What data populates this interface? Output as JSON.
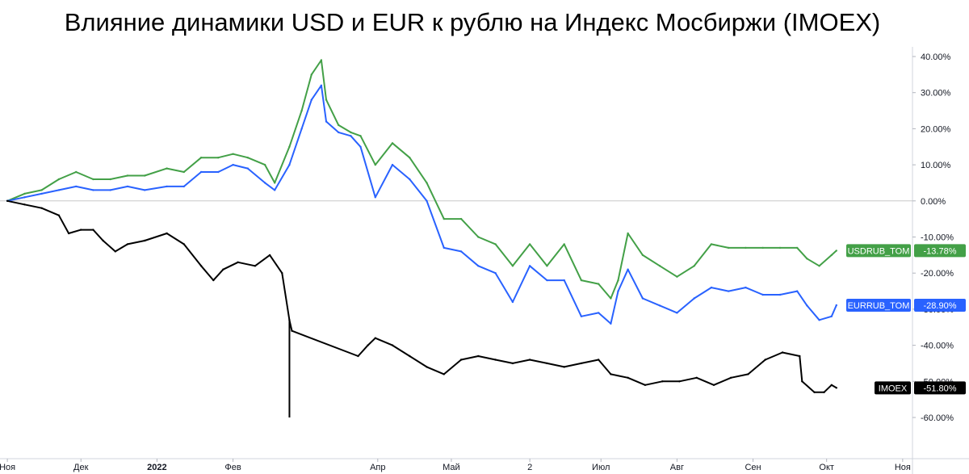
{
  "title": "Влияние динамики USD и EUR к рублю на Индекс Мосбиржи (IMOEX)",
  "chart_data": {
    "type": "line",
    "title": "Влияние динамики USD и EUR к рублю на Индекс Мосбиржи (IMOEX)",
    "y_unit": "%",
    "ylim": [
      -64,
      42
    ],
    "y_ticks": [
      "40.00%",
      "30.00%",
      "20.00%",
      "10.00%",
      "0.00%",
      "-10.00%",
      "-20.00%",
      "-30.00%",
      "-40.00%",
      "-50.00%",
      "-60.00%"
    ],
    "y_tick_values": [
      40,
      30,
      20,
      10,
      0,
      -10,
      -20,
      -30,
      -40,
      -50,
      -60
    ],
    "x_ticks": [
      {
        "label": "Ноя",
        "date": "2021-11-01",
        "bold": false
      },
      {
        "label": "Дек",
        "date": "2021-12-01",
        "bold": false
      },
      {
        "label": "2022",
        "date": "2022-01-01",
        "bold": true
      },
      {
        "label": "Фев",
        "date": "2022-02-01",
        "bold": false
      },
      {
        "label": "Апр",
        "date": "2022-04-01",
        "bold": false
      },
      {
        "label": "Май",
        "date": "2022-05-01",
        "bold": false
      },
      {
        "label": "2",
        "date": "2022-06-02",
        "bold": false
      },
      {
        "label": "Июл",
        "date": "2022-07-01",
        "bold": false
      },
      {
        "label": "Авг",
        "date": "2022-08-01",
        "bold": false
      },
      {
        "label": "Сен",
        "date": "2022-09-01",
        "bold": false
      },
      {
        "label": "Окт",
        "date": "2022-10-01",
        "bold": false
      },
      {
        "label": "Ноя",
        "date": "2022-11-01",
        "bold": false
      }
    ],
    "xlim": [
      "2021-10-29",
      "2022-11-05"
    ],
    "zero_line": true,
    "grid": false,
    "series": [
      {
        "name": "USDRUB_TOM",
        "color": "#43a047",
        "last_label": "-13.78%",
        "points": [
          [
            "2021-11-01",
            0
          ],
          [
            "2021-11-08",
            2
          ],
          [
            "2021-11-15",
            3
          ],
          [
            "2021-11-22",
            6
          ],
          [
            "2021-11-29",
            8
          ],
          [
            "2021-12-06",
            6
          ],
          [
            "2021-12-13",
            6
          ],
          [
            "2021-12-20",
            7
          ],
          [
            "2021-12-27",
            7
          ],
          [
            "2022-01-05",
            9
          ],
          [
            "2022-01-12",
            8
          ],
          [
            "2022-01-19",
            12
          ],
          [
            "2022-01-26",
            12
          ],
          [
            "2022-02-01",
            13
          ],
          [
            "2022-02-07",
            12
          ],
          [
            "2022-02-14",
            10
          ],
          [
            "2022-02-18",
            5
          ],
          [
            "2022-02-24",
            15
          ],
          [
            "2022-03-01",
            25
          ],
          [
            "2022-03-05",
            35
          ],
          [
            "2022-03-09",
            39
          ],
          [
            "2022-03-11",
            28
          ],
          [
            "2022-03-16",
            21
          ],
          [
            "2022-03-21",
            19
          ],
          [
            "2022-03-25",
            18
          ],
          [
            "2022-03-31",
            10
          ],
          [
            "2022-04-07",
            16
          ],
          [
            "2022-04-14",
            12
          ],
          [
            "2022-04-21",
            5
          ],
          [
            "2022-04-28",
            -5
          ],
          [
            "2022-05-05",
            -5
          ],
          [
            "2022-05-12",
            -10
          ],
          [
            "2022-05-19",
            -12
          ],
          [
            "2022-05-26",
            -18
          ],
          [
            "2022-06-02",
            -12
          ],
          [
            "2022-06-09",
            -18
          ],
          [
            "2022-06-16",
            -12
          ],
          [
            "2022-06-23",
            -22
          ],
          [
            "2022-06-30",
            -23
          ],
          [
            "2022-07-05",
            -27
          ],
          [
            "2022-07-08",
            -22
          ],
          [
            "2022-07-12",
            -9
          ],
          [
            "2022-07-18",
            -15
          ],
          [
            "2022-07-25",
            -18
          ],
          [
            "2022-08-01",
            -21
          ],
          [
            "2022-08-08",
            -18
          ],
          [
            "2022-08-15",
            -12
          ],
          [
            "2022-08-22",
            -13
          ],
          [
            "2022-08-29",
            -13
          ],
          [
            "2022-09-05",
            -13
          ],
          [
            "2022-09-12",
            -13
          ],
          [
            "2022-09-19",
            -13
          ],
          [
            "2022-09-23",
            -16
          ],
          [
            "2022-09-28",
            -18
          ],
          [
            "2022-10-03",
            -15
          ],
          [
            "2022-10-05",
            -13.78
          ]
        ]
      },
      {
        "name": "EURRUB_TOM",
        "color": "#2962ff",
        "last_label": "-28.90%",
        "points": [
          [
            "2021-11-01",
            0
          ],
          [
            "2021-11-08",
            1
          ],
          [
            "2021-11-15",
            2
          ],
          [
            "2021-11-22",
            3
          ],
          [
            "2021-11-29",
            4
          ],
          [
            "2021-12-06",
            3
          ],
          [
            "2021-12-13",
            3
          ],
          [
            "2021-12-20",
            4
          ],
          [
            "2021-12-27",
            3
          ],
          [
            "2022-01-05",
            4
          ],
          [
            "2022-01-12",
            4
          ],
          [
            "2022-01-19",
            8
          ],
          [
            "2022-01-26",
            8
          ],
          [
            "2022-02-01",
            10
          ],
          [
            "2022-02-07",
            9
          ],
          [
            "2022-02-14",
            5
          ],
          [
            "2022-02-18",
            3
          ],
          [
            "2022-02-24",
            10
          ],
          [
            "2022-03-01",
            20
          ],
          [
            "2022-03-05",
            28
          ],
          [
            "2022-03-09",
            32
          ],
          [
            "2022-03-11",
            22
          ],
          [
            "2022-03-16",
            19
          ],
          [
            "2022-03-21",
            18
          ],
          [
            "2022-03-25",
            15
          ],
          [
            "2022-03-31",
            1
          ],
          [
            "2022-04-07",
            10
          ],
          [
            "2022-04-14",
            6
          ],
          [
            "2022-04-21",
            0
          ],
          [
            "2022-04-28",
            -13
          ],
          [
            "2022-05-05",
            -14
          ],
          [
            "2022-05-12",
            -18
          ],
          [
            "2022-05-19",
            -20
          ],
          [
            "2022-05-26",
            -28
          ],
          [
            "2022-06-02",
            -18
          ],
          [
            "2022-06-09",
            -22
          ],
          [
            "2022-06-16",
            -22
          ],
          [
            "2022-06-23",
            -32
          ],
          [
            "2022-06-30",
            -31
          ],
          [
            "2022-07-05",
            -34
          ],
          [
            "2022-07-08",
            -25
          ],
          [
            "2022-07-12",
            -19
          ],
          [
            "2022-07-18",
            -27
          ],
          [
            "2022-07-25",
            -29
          ],
          [
            "2022-08-01",
            -31
          ],
          [
            "2022-08-08",
            -27
          ],
          [
            "2022-08-15",
            -24
          ],
          [
            "2022-08-22",
            -25
          ],
          [
            "2022-08-29",
            -24
          ],
          [
            "2022-09-05",
            -26
          ],
          [
            "2022-09-12",
            -26
          ],
          [
            "2022-09-19",
            -25
          ],
          [
            "2022-09-23",
            -29
          ],
          [
            "2022-09-28",
            -33
          ],
          [
            "2022-10-03",
            -32
          ],
          [
            "2022-10-05",
            -28.9
          ]
        ]
      },
      {
        "name": "IMOEX",
        "color": "#000000",
        "last_label": "-51.80%",
        "points": [
          [
            "2021-11-01",
            0
          ],
          [
            "2021-11-08",
            -1
          ],
          [
            "2021-11-15",
            -2
          ],
          [
            "2021-11-22",
            -4
          ],
          [
            "2021-11-26",
            -9
          ],
          [
            "2021-12-01",
            -8
          ],
          [
            "2021-12-06",
            -8
          ],
          [
            "2021-12-10",
            -11
          ],
          [
            "2021-12-15",
            -14
          ],
          [
            "2021-12-20",
            -12
          ],
          [
            "2021-12-27",
            -11
          ],
          [
            "2022-01-05",
            -9
          ],
          [
            "2022-01-12",
            -12
          ],
          [
            "2022-01-19",
            -18
          ],
          [
            "2022-01-24",
            -22
          ],
          [
            "2022-01-28",
            -19
          ],
          [
            "2022-02-03",
            -17
          ],
          [
            "2022-02-10",
            -18
          ],
          [
            "2022-02-16",
            -15
          ],
          [
            "2022-02-21",
            -20
          ],
          [
            "2022-02-24",
            -33
          ],
          [
            "2022-02-25",
            -36
          ],
          [
            "2022-03-24",
            -43
          ],
          [
            "2022-03-28",
            -40
          ],
          [
            "2022-03-31",
            -38
          ],
          [
            "2022-04-07",
            -40
          ],
          [
            "2022-04-14",
            -43
          ],
          [
            "2022-04-21",
            -46
          ],
          [
            "2022-04-28",
            -48
          ],
          [
            "2022-05-05",
            -44
          ],
          [
            "2022-05-12",
            -43
          ],
          [
            "2022-05-19",
            -44
          ],
          [
            "2022-05-26",
            -45
          ],
          [
            "2022-06-02",
            -44
          ],
          [
            "2022-06-09",
            -45
          ],
          [
            "2022-06-16",
            -46
          ],
          [
            "2022-06-23",
            -45
          ],
          [
            "2022-06-30",
            -44
          ],
          [
            "2022-07-05",
            -48
          ],
          [
            "2022-07-12",
            -49
          ],
          [
            "2022-07-19",
            -51
          ],
          [
            "2022-07-26",
            -50
          ],
          [
            "2022-08-02",
            -50
          ],
          [
            "2022-08-09",
            -49
          ],
          [
            "2022-08-16",
            -51
          ],
          [
            "2022-08-23",
            -49
          ],
          [
            "2022-08-30",
            -48
          ],
          [
            "2022-09-06",
            -44
          ],
          [
            "2022-09-13",
            -42
          ],
          [
            "2022-09-20",
            -43
          ],
          [
            "2022-09-21",
            -50
          ],
          [
            "2022-09-26",
            -53
          ],
          [
            "2022-09-30",
            -53
          ],
          [
            "2022-10-03",
            -51
          ],
          [
            "2022-10-05",
            -51.8
          ]
        ],
        "extremes": [
          [
            "2022-02-24",
            -60
          ]
        ]
      }
    ]
  }
}
